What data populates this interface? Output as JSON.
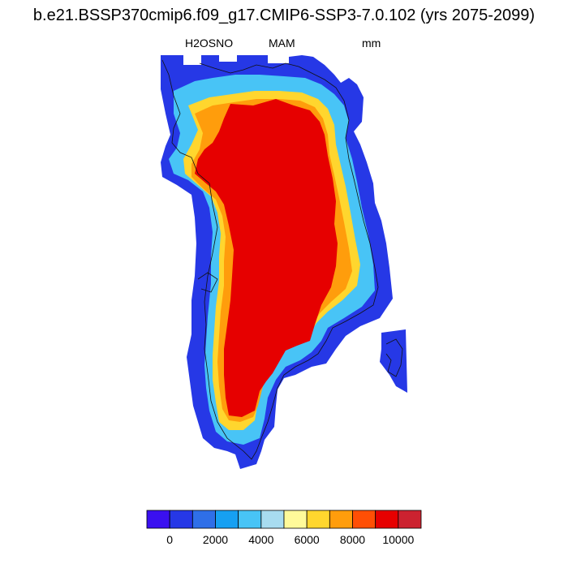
{
  "header": {
    "title": "b.e21.BSSP370cmip6.f09_g17.CMIP6-SSP3-7.0.102 (yrs 2075-2099)",
    "variable": "H2OSNO",
    "season": "MAM",
    "units": "mm"
  },
  "colorbar": {
    "colors": [
      "#3a10f0",
      "#2638e6",
      "#2f6fe8",
      "#16a0f2",
      "#48c4f6",
      "#a8dcf0",
      "#fffa9a",
      "#ffd62e",
      "#ff9d0c",
      "#ff4f05",
      "#e60000",
      "#cc2230"
    ],
    "tick_labels": [
      "0",
      "2000",
      "4000",
      "6000",
      "8000",
      "10000"
    ],
    "tick_values": [
      0,
      2000,
      4000,
      6000,
      8000,
      10000
    ],
    "boundaries": [
      -1000,
      0,
      1000,
      2000,
      3000,
      4000,
      5000,
      6000,
      7000,
      8000,
      9000,
      10000,
      11000
    ]
  },
  "map": {
    "region": "Greenland",
    "interior_value": "> 10000 mm",
    "coast_band_values": "0 - 10000 mm"
  }
}
